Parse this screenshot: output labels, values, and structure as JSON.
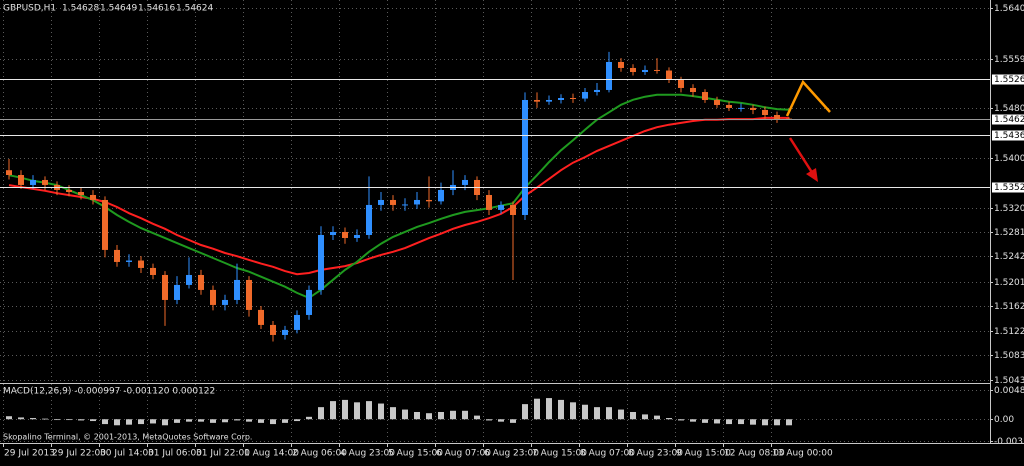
{
  "chart_data": [
    {
      "type": "candlestick",
      "title": "GBPUSD,H1",
      "categories": [
        "29 Jul 2013",
        null,
        null,
        null,
        "29 Jul 22:00",
        null,
        null,
        null,
        "30 Jul 14:00",
        null,
        null,
        null,
        "31 Jul 06:00",
        null,
        null,
        null,
        "31 Jul 22:00",
        null,
        null,
        null,
        "1 Aug 14:00",
        null,
        null,
        null,
        "2 Aug 06:00",
        null,
        null,
        null,
        "4 Aug 23:00",
        null,
        null,
        null,
        "5 Aug 15:00",
        null,
        null,
        null,
        "6 Aug 07:00",
        null,
        null,
        null,
        "6 Aug 23:00",
        null,
        null,
        null,
        "7 Aug 15:00",
        null,
        null,
        null,
        "8 Aug 07:00",
        null,
        null,
        null,
        "8 Aug 23:00",
        null,
        null,
        null,
        "9 Aug 15:00",
        null,
        null,
        null,
        "12 Aug 08:00",
        null,
        null,
        null,
        "13 Aug 00:00",
        null
      ],
      "open": [
        1.538,
        1.53723,
        1.53563,
        1.53643,
        1.53563,
        1.53483,
        1.5345,
        1.53402,
        1.53322,
        1.5252,
        1.52327,
        1.5235,
        1.52231,
        1.52118,
        1.51717,
        1.51958,
        1.52118,
        1.51878,
        1.51637,
        1.51717,
        1.52038,
        1.51557,
        1.51316,
        1.51155,
        1.51236,
        1.51476,
        1.51878,
        1.5276,
        1.52808,
        1.52712,
        1.5276,
        1.53242,
        1.53322,
        1.53242,
        1.5325,
        1.53322,
        1.533,
        1.53483,
        1.53563,
        1.53643,
        1.53402,
        1.53162,
        1.53242,
        1.53081,
        1.54927,
        1.549,
        1.54927,
        1.54959,
        1.5495,
        1.55055,
        1.55088,
        1.55537,
        1.55441,
        1.55376,
        1.55409,
        1.554,
        1.55248,
        1.5512,
        1.55055,
        1.54927,
        1.54847,
        1.54799,
        1.548,
        1.54767,
        1.54686,
        1.54628
      ],
      "high": [
        1.5398,
        1.538,
        1.5372,
        1.537,
        1.5362,
        1.5356,
        1.5352,
        1.5348,
        1.5338,
        1.526,
        1.5245,
        1.5242,
        1.523,
        1.5218,
        1.521,
        1.524,
        1.522,
        1.5195,
        1.518,
        1.523,
        1.521,
        1.5162,
        1.5138,
        1.513,
        1.5155,
        1.5195,
        1.529,
        1.529,
        1.5288,
        1.5285,
        1.537,
        1.5345,
        1.534,
        1.5335,
        1.5345,
        1.537,
        1.536,
        1.538,
        1.5372,
        1.537,
        1.5348,
        1.533,
        1.533,
        1.5505,
        1.5505,
        1.55,
        1.5502,
        1.5503,
        1.5512,
        1.552,
        1.557,
        1.556,
        1.555,
        1.5548,
        1.556,
        1.5545,
        1.553,
        1.5518,
        1.551,
        1.5498,
        1.549,
        1.5487,
        1.5485,
        1.5482,
        1.5474,
        1.54649
      ],
      "low": [
        1.5365,
        1.535,
        1.535,
        1.5348,
        1.534,
        1.5338,
        1.5333,
        1.5325,
        1.524,
        1.5225,
        1.5225,
        1.5215,
        1.5205,
        1.513,
        1.5165,
        1.519,
        1.518,
        1.5155,
        1.5155,
        1.5165,
        1.5145,
        1.5125,
        1.5105,
        1.5108,
        1.5118,
        1.514,
        1.518,
        1.5268,
        1.5262,
        1.5265,
        1.527,
        1.5315,
        1.5315,
        1.5315,
        1.5318,
        1.532,
        1.5325,
        1.534,
        1.5348,
        1.5332,
        1.5308,
        1.531,
        1.52038,
        1.53,
        1.548,
        1.5485,
        1.5487,
        1.5488,
        1.549,
        1.55,
        1.5505,
        1.5538,
        1.5532,
        1.5533,
        1.5535,
        1.552,
        1.5505,
        1.5498,
        1.5488,
        1.548,
        1.5475,
        1.5474,
        1.547,
        1.5462,
        1.5456,
        1.54616
      ],
      "close": [
        1.53723,
        1.53563,
        1.53643,
        1.53563,
        1.53483,
        1.5345,
        1.53402,
        1.53322,
        1.5252,
        1.52327,
        1.5235,
        1.52231,
        1.52118,
        1.51717,
        1.51958,
        1.52118,
        1.51878,
        1.51637,
        1.51717,
        1.52038,
        1.51557,
        1.51316,
        1.51155,
        1.51236,
        1.51476,
        1.51878,
        1.5276,
        1.52808,
        1.52712,
        1.5276,
        1.53242,
        1.53322,
        1.53242,
        1.5325,
        1.53322,
        1.533,
        1.53483,
        1.53563,
        1.53643,
        1.53402,
        1.53162,
        1.53242,
        1.53081,
        1.54927,
        1.549,
        1.54927,
        1.54959,
        1.5495,
        1.55055,
        1.55088,
        1.55537,
        1.55441,
        1.55376,
        1.55409,
        1.554,
        1.55248,
        1.5512,
        1.55055,
        1.54927,
        1.54847,
        1.54799,
        1.548,
        1.54767,
        1.54686,
        1.54606,
        1.54624
      ],
      "up_color": "#2f8fff",
      "down_color": "#f06a2a",
      "series": [
        {
          "color": "#ff2020",
          "values": [
            1.5356,
            1.5353,
            1.535,
            1.5347,
            1.5343,
            1.534,
            1.5337,
            1.5334,
            1.5329,
            1.5321,
            1.5311,
            1.5303,
            1.5294,
            1.5286,
            1.5276,
            1.5268,
            1.526,
            1.5254,
            1.5247,
            1.5242,
            1.5236,
            1.523,
            1.5225,
            1.5218,
            1.5213,
            1.5215,
            1.522,
            1.5223,
            1.5226,
            1.5231,
            1.5238,
            1.5244,
            1.5249,
            1.5255,
            1.5263,
            1.5271,
            1.5278,
            1.5286,
            1.5292,
            1.5297,
            1.5303,
            1.531,
            1.5321,
            1.5339,
            1.5352,
            1.5366,
            1.538,
            1.5392,
            1.5401,
            1.5411,
            1.5419,
            1.5427,
            1.5435,
            1.5443,
            1.5449,
            1.5453,
            1.5456,
            1.5459,
            1.5461,
            1.5461,
            1.5462,
            1.5462,
            1.5462,
            1.5464,
            1.5464,
            1.5464
          ]
        },
        {
          "color": "#1f9a1f",
          "values": [
            1.5372,
            1.5368,
            1.5363,
            1.536,
            1.5356,
            1.5348,
            1.534,
            1.5332,
            1.5321,
            1.5308,
            1.5297,
            1.5287,
            1.5279,
            1.5271,
            1.5263,
            1.5255,
            1.5247,
            1.5239,
            1.5231,
            1.5223,
            1.5217,
            1.5209,
            1.5201,
            1.5193,
            1.5183,
            1.5175,
            1.5188,
            1.5204,
            1.522,
            1.5233,
            1.5249,
            1.5262,
            1.5273,
            1.5281,
            1.5289,
            1.5295,
            1.5302,
            1.5308,
            1.5313,
            1.5316,
            1.5319,
            1.5323,
            1.5327,
            1.5352,
            1.5372,
            1.5393,
            1.5412,
            1.5428,
            1.5445,
            1.5461,
            1.5473,
            1.5485,
            1.5493,
            1.5498,
            1.5501,
            1.5501,
            1.5501,
            1.5499,
            1.5496,
            1.5493,
            1.549,
            1.5488,
            1.5485,
            1.5481,
            1.5478,
            1.5477
          ]
        }
      ],
      "levels": [
        1.55268,
        1.54364,
        1.53527
      ],
      "bid": 1.54624,
      "ylim": [
        1.504,
        1.565
      ],
      "yticks": [
        1.56405,
        {
          "value": 1.5559,
          "label": "1.55590"
        },
        {
          "value": 1.548,
          "label": "1.54800"
        },
        {
          "value": 1.54,
          "label": "1.54000"
        },
        {
          "value": 1.532,
          "label": "1.53200"
        },
        {
          "value": 1.5281,
          "label": "1.52810"
        },
        {
          "value": 1.5242,
          "label": "1.52420"
        },
        {
          "value": 1.5201,
          "label": "1.52010"
        },
        {
          "value": 1.5162,
          "label": "1.51620"
        },
        {
          "value": 1.5122,
          "label": "1.51220"
        },
        {
          "value": 1.5083,
          "label": "1.50830"
        },
        {
          "value": 1.5043,
          "label": "1.50430"
        }
      ],
      "grid": true
    },
    {
      "type": "bar",
      "title": "MACD(12,26,9) -0.000997 -0.001120 0.000122",
      "annotation": "Skopalino Terminal, © 2001-2013, MetaQuotes Software Corp.",
      "color": "#c8c8c8",
      "values": [
        0.0005,
        0.0003,
        0.0002,
        0.0001,
        0,
        -0.0001,
        -0.0002,
        -0.0003,
        -0.0008,
        -0.001,
        -0.0009,
        -0.0008,
        -0.0007,
        -0.001,
        -0.0006,
        -0.0004,
        -0.0004,
        -0.0006,
        -0.0005,
        -0.0002,
        -0.0004,
        -0.0006,
        -0.0008,
        -0.0006,
        -0.0003,
        0.0004,
        0.002,
        0.003,
        0.0032,
        0.0028,
        0.003,
        0.0026,
        0.002,
        0.0016,
        0.0012,
        0.001,
        0.0012,
        0.0014,
        0.0014,
        0.0006,
        -0.0002,
        -0.0004,
        -0.0006,
        0.0025,
        0.0034,
        0.0035,
        0.0032,
        0.0028,
        0.0024,
        0.002,
        0.002,
        0.0016,
        0.0012,
        0.0008,
        0.0006,
        0.0002,
        -0.0002,
        -0.0004,
        -0.0006,
        -0.0007,
        -0.0008,
        -0.0008,
        -0.0009,
        -0.001,
        -0.001,
        -0.001
      ],
      "ylim": [
        -0.0036,
        0.0055
      ],
      "yticks": [
        0.004812,
        {
          "value": 0,
          "label": "0.00"
        },
        -0.00356
      ],
      "grid": true
    }
  ]
}
